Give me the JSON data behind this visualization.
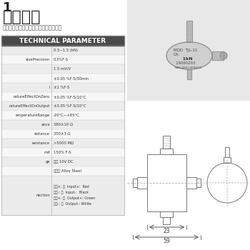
{
  "title_line1": "1",
  "title_line2": "动传感器",
  "subtitle": "荷载性能强，密封性好。适用于车辆的制",
  "section_header": "TECHNICAL PARAMETER",
  "params": [
    [
      "",
      "0.5~1.5 (kN)"
    ],
    [
      "sivePrecision",
      "0.3%F·S"
    ],
    [
      "",
      "1.5 mV/V"
    ],
    [
      "",
      "±0.05 %F·S/30min"
    ],
    [
      "l",
      "±1 %F·S"
    ],
    [
      "ratureEffectOnZero",
      "±0.05 %F·S/10°C"
    ],
    [
      "ratureEffectOnOutput",
      "±0.05 %F·S/10°C"
    ],
    [
      "emperatureRange",
      "-20°C~+65°C"
    ],
    [
      "ance",
      "380±10 Ω"
    ],
    [
      "sistance",
      "350±3 Ω"
    ],
    [
      "esistance",
      ">5000 MΩ"
    ],
    [
      "mit",
      "150% F·S"
    ],
    [
      "ge",
      "建议 10V DC"
    ],
    [
      "",
      "合金锂 Alloy Steel"
    ],
    [
      "nection",
      "输入+: 红  Input+:  Red\n输入-: 黑  Input-:  Black\n输出+: 绻  Output+: Green\n输出-: 白  Output-: White"
    ]
  ],
  "dim1": "23",
  "dim2": "59",
  "bg_color": "#ffffff",
  "header_bg": "#4a4a4a",
  "header_text": "#ffffff",
  "row_colors": [
    "#ececec",
    "#f7f7f7"
  ],
  "text_color": "#333333",
  "dc": "#777777"
}
